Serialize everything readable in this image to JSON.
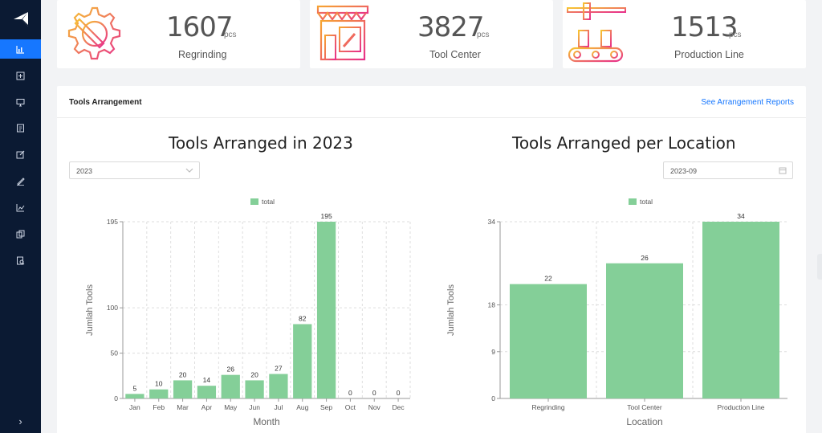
{
  "sidebar": {
    "items": [
      {
        "icon": "chart-icon",
        "active": true
      },
      {
        "icon": "add-box-icon",
        "active": false
      },
      {
        "icon": "monitor-icon",
        "active": false
      },
      {
        "icon": "list-icon",
        "active": false
      },
      {
        "icon": "edit-box-icon",
        "active": false
      },
      {
        "icon": "pencil-icon",
        "active": false
      },
      {
        "icon": "line-chart-icon",
        "active": false
      },
      {
        "icon": "copy-icon",
        "active": false
      },
      {
        "icon": "report-icon",
        "active": false
      }
    ],
    "expand": "›"
  },
  "stats": [
    {
      "value": "1607",
      "unit": "pcs",
      "label": "Regrinding",
      "icon": "gear-wrench-icon"
    },
    {
      "value": "3827",
      "unit": "pcs",
      "label": "Tool Center",
      "icon": "tool-shop-icon"
    },
    {
      "value": "1513",
      "unit": "pcs",
      "label": "Production Line",
      "icon": "conveyor-icon"
    }
  ],
  "panel": {
    "title": "Tools Arrangement",
    "link": "See Arrangement Reports"
  },
  "left": {
    "title": "Tools Arranged in 2023",
    "select_value": "2023"
  },
  "right": {
    "title": "Tools Arranged per Location",
    "date_value": "2023-09"
  },
  "colors": {
    "bar": "#84cf98",
    "accent": "#1677ff",
    "sidebar": "#0b1a33"
  },
  "chart_data": [
    {
      "type": "bar",
      "categories": [
        "Jan",
        "Feb",
        "Mar",
        "Apr",
        "May",
        "Jun",
        "Jul",
        "Aug",
        "Sep",
        "Oct",
        "Nov",
        "Dec"
      ],
      "series": [
        {
          "name": "total",
          "values": [
            5,
            10,
            20,
            14,
            26,
            20,
            27,
            82,
            195,
            0,
            0,
            0
          ]
        }
      ],
      "xlabel": "Month",
      "ylabel": "Jumlah Tools",
      "yticks": [
        0,
        50,
        100,
        195
      ],
      "ylim": [
        0,
        195
      ],
      "grid": true,
      "legend": "top-center"
    },
    {
      "type": "bar",
      "categories": [
        "Regrinding",
        "Tool Center",
        "Production Line"
      ],
      "series": [
        {
          "name": "total",
          "values": [
            22,
            26,
            34
          ]
        }
      ],
      "xlabel": "Location",
      "ylabel": "Jumlah Tools",
      "yticks": [
        0,
        9,
        18,
        34
      ],
      "ylim": [
        0,
        34
      ],
      "grid": true,
      "legend": "top-center"
    }
  ]
}
